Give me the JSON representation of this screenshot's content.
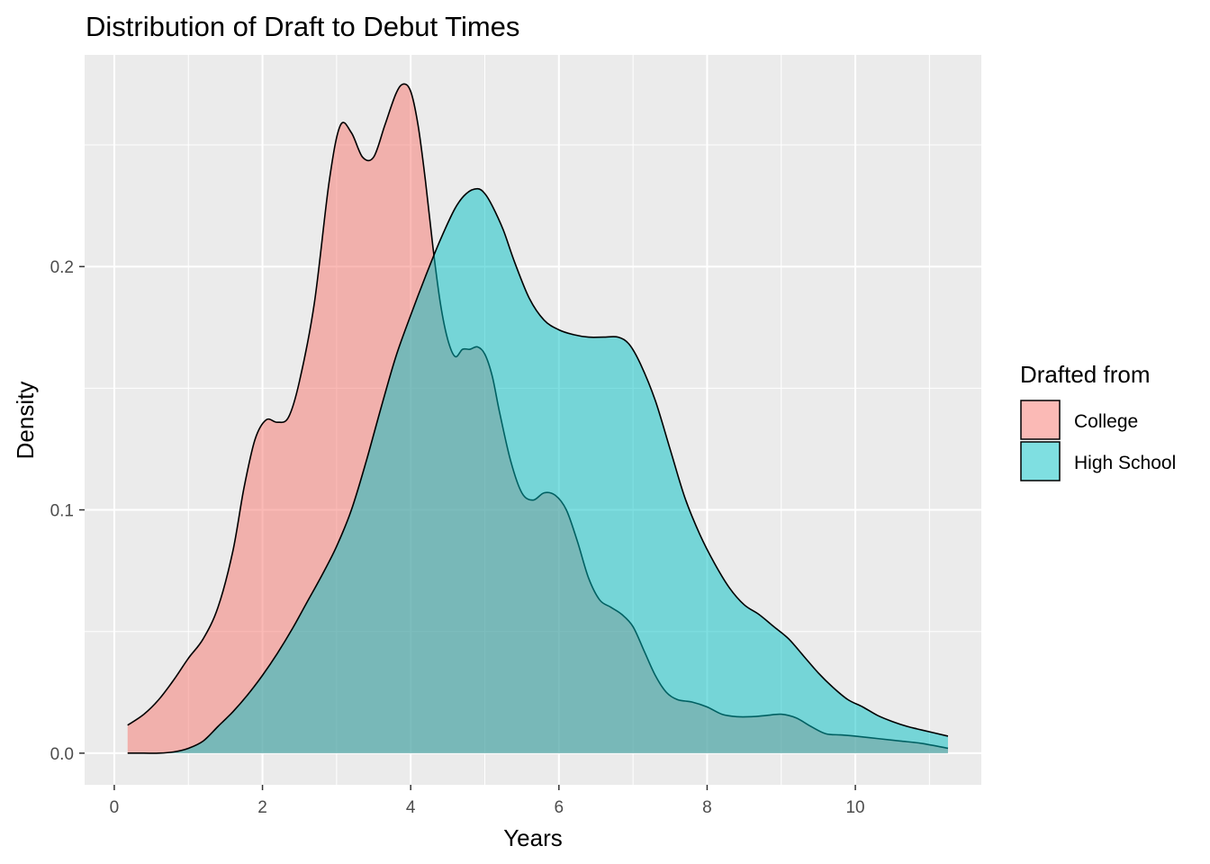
{
  "chart_data": {
    "type": "area",
    "title": "Distribution of Draft to Debut Times",
    "xlabel": "Years",
    "ylabel": "Density",
    "xlim": [
      -0.4,
      11.7
    ],
    "ylim": [
      -0.013,
      0.287
    ],
    "x_ticks": [
      0,
      2,
      4,
      6,
      8,
      10
    ],
    "x_tick_labels": [
      "0",
      "2",
      "4",
      "6",
      "8",
      "10"
    ],
    "y_ticks": [
      0.0,
      0.1,
      0.2
    ],
    "y_tick_labels": [
      "0.0",
      "0.1",
      "0.2"
    ],
    "grid": true,
    "legend": {
      "title": "Drafted from",
      "position": "right",
      "entries": [
        "College",
        "High School"
      ]
    },
    "series": [
      {
        "name": "College",
        "color": "#F8766D",
        "x": [
          0.18,
          0.4,
          0.6,
          0.8,
          1.0,
          1.2,
          1.4,
          1.6,
          1.75,
          1.9,
          2.05,
          2.2,
          2.35,
          2.5,
          2.7,
          2.9,
          3.05,
          3.2,
          3.35,
          3.5,
          3.65,
          3.8,
          3.9,
          4.0,
          4.1,
          4.2,
          4.3,
          4.4,
          4.5,
          4.6,
          4.7,
          4.8,
          4.9,
          5.0,
          5.1,
          5.2,
          5.35,
          5.5,
          5.65,
          5.8,
          5.95,
          6.1,
          6.25,
          6.4,
          6.55,
          6.7,
          6.85,
          7.0,
          7.15,
          7.3,
          7.45,
          7.6,
          7.8,
          8.0,
          8.2,
          8.4,
          8.6,
          8.8,
          9.0,
          9.2,
          9.4,
          9.6,
          9.8,
          10.0,
          10.3,
          10.6,
          10.9,
          11.25
        ],
        "values": [
          0.0115,
          0.016,
          0.022,
          0.03,
          0.039,
          0.047,
          0.06,
          0.083,
          0.109,
          0.129,
          0.137,
          0.136,
          0.138,
          0.153,
          0.185,
          0.235,
          0.258,
          0.255,
          0.245,
          0.245,
          0.258,
          0.271,
          0.275,
          0.272,
          0.258,
          0.235,
          0.208,
          0.185,
          0.17,
          0.163,
          0.166,
          0.166,
          0.167,
          0.164,
          0.155,
          0.14,
          0.12,
          0.107,
          0.104,
          0.107,
          0.106,
          0.1,
          0.087,
          0.072,
          0.063,
          0.06,
          0.057,
          0.052,
          0.042,
          0.032,
          0.025,
          0.022,
          0.021,
          0.019,
          0.016,
          0.015,
          0.015,
          0.0155,
          0.016,
          0.0145,
          0.011,
          0.008,
          0.0075,
          0.007,
          0.006,
          0.005,
          0.004,
          0.002
        ]
      },
      {
        "name": "High School",
        "color": "#00BFC4",
        "x": [
          0.18,
          0.4,
          0.6,
          0.8,
          1.0,
          1.2,
          1.4,
          1.6,
          1.8,
          2.0,
          2.2,
          2.4,
          2.6,
          2.8,
          3.0,
          3.2,
          3.4,
          3.6,
          3.8,
          4.0,
          4.2,
          4.4,
          4.6,
          4.75,
          4.9,
          5.0,
          5.1,
          5.25,
          5.4,
          5.6,
          5.8,
          6.0,
          6.2,
          6.4,
          6.6,
          6.8,
          6.95,
          7.1,
          7.3,
          7.5,
          7.7,
          7.9,
          8.1,
          8.3,
          8.5,
          8.7,
          8.9,
          9.1,
          9.3,
          9.5,
          9.7,
          9.9,
          10.1,
          10.3,
          10.5,
          10.7,
          10.9,
          11.25
        ],
        "values": [
          0.0,
          0.0,
          0.0,
          0.0005,
          0.002,
          0.005,
          0.011,
          0.017,
          0.024,
          0.032,
          0.041,
          0.051,
          0.062,
          0.073,
          0.085,
          0.1,
          0.12,
          0.142,
          0.163,
          0.18,
          0.196,
          0.211,
          0.224,
          0.23,
          0.232,
          0.23,
          0.225,
          0.215,
          0.202,
          0.187,
          0.178,
          0.174,
          0.172,
          0.171,
          0.171,
          0.171,
          0.168,
          0.16,
          0.145,
          0.125,
          0.105,
          0.09,
          0.078,
          0.068,
          0.061,
          0.057,
          0.052,
          0.047,
          0.04,
          0.033,
          0.027,
          0.022,
          0.019,
          0.0155,
          0.013,
          0.011,
          0.0095,
          0.007
        ]
      }
    ]
  }
}
